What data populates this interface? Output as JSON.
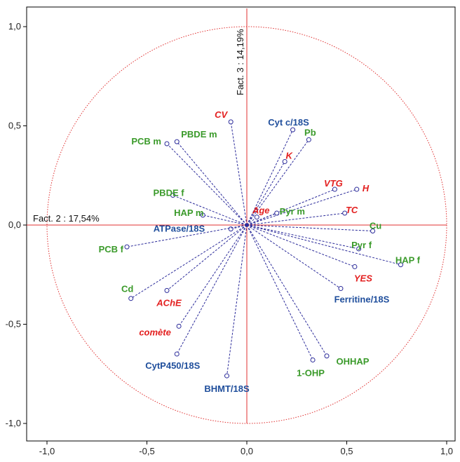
{
  "chart_data": {
    "type": "scatter",
    "xlabel": "Fact. 2  : 17,54%",
    "ylabel": "Fact. 3  : 14,19%",
    "xlim": [
      -1.1,
      1.1
    ],
    "ylim": [
      -1.1,
      1.1
    ],
    "x_ticks": [
      "-1,0",
      "-0,5",
      "0,0",
      "0,5",
      "1,0"
    ],
    "y_ticks": [
      "1,0",
      "0,5",
      "0,0",
      "-0,5",
      "-1,0"
    ],
    "grid": false,
    "unit_circle": true,
    "colors": {
      "green": "#3a9a2a",
      "red": "#e32020",
      "blue": "#1f4e9c",
      "vector": "#2b2b9a",
      "axis": "#e03030"
    },
    "variables": [
      {
        "name": "CV",
        "x": -0.08,
        "y": 0.52,
        "color": "red",
        "italic": true
      },
      {
        "name": "Cyt c/18S",
        "x": 0.23,
        "y": 0.48,
        "color": "blue",
        "italic": false
      },
      {
        "name": "Pb",
        "x": 0.31,
        "y": 0.43,
        "color": "green",
        "italic": false
      },
      {
        "name": "K",
        "x": 0.19,
        "y": 0.32,
        "color": "red",
        "italic": true
      },
      {
        "name": "PCB m",
        "x": -0.4,
        "y": 0.41,
        "color": "green",
        "italic": false
      },
      {
        "name": "PBDE m",
        "x": -0.35,
        "y": 0.42,
        "color": "green",
        "italic": false
      },
      {
        "name": "VTG",
        "x": 0.44,
        "y": 0.18,
        "color": "red",
        "italic": true
      },
      {
        "name": "H",
        "x": 0.55,
        "y": 0.18,
        "color": "red",
        "italic": true
      },
      {
        "name": "PBDE f",
        "x": -0.37,
        "y": 0.15,
        "color": "green",
        "italic": false
      },
      {
        "name": "TC",
        "x": 0.49,
        "y": 0.06,
        "color": "red",
        "italic": true
      },
      {
        "name": "HAP m",
        "x": -0.22,
        "y": 0.05,
        "color": "green",
        "italic": false
      },
      {
        "name": "Pyr m",
        "x": 0.15,
        "y": 0.06,
        "color": "green",
        "italic": false
      },
      {
        "name": "Age",
        "x": 0.05,
        "y": 0.04,
        "color": "red",
        "italic": true
      },
      {
        "name": "ATPase/18S",
        "x": -0.08,
        "y": -0.02,
        "color": "blue",
        "italic": false
      },
      {
        "name": "Cu",
        "x": 0.63,
        "y": -0.03,
        "color": "green",
        "italic": false
      },
      {
        "name": "PCB f",
        "x": -0.6,
        "y": -0.11,
        "color": "green",
        "italic": false
      },
      {
        "name": "Pyr f",
        "x": 0.56,
        "y": -0.12,
        "color": "green",
        "italic": false
      },
      {
        "name": "HAP f",
        "x": 0.77,
        "y": -0.2,
        "color": "green",
        "italic": false
      },
      {
        "name": "YES",
        "x": 0.54,
        "y": -0.21,
        "color": "red",
        "italic": true
      },
      {
        "name": "Ferritine/18S",
        "x": 0.47,
        "y": -0.32,
        "color": "blue",
        "italic": false
      },
      {
        "name": "Cd",
        "x": -0.58,
        "y": -0.37,
        "color": "green",
        "italic": false
      },
      {
        "name": "AChE",
        "x": -0.4,
        "y": -0.33,
        "color": "red",
        "italic": true
      },
      {
        "name": "comète",
        "x": -0.34,
        "y": -0.51,
        "color": "red",
        "italic": true
      },
      {
        "name": "CytP450/18S",
        "x": -0.35,
        "y": -0.65,
        "color": "blue",
        "italic": false
      },
      {
        "name": "BHMT/18S",
        "x": -0.1,
        "y": -0.76,
        "color": "blue",
        "italic": false
      },
      {
        "name": "1-OHP",
        "x": 0.33,
        "y": -0.68,
        "color": "green",
        "italic": false
      },
      {
        "name": "OHHAP",
        "x": 0.4,
        "y": -0.66,
        "color": "green",
        "italic": false
      }
    ]
  }
}
